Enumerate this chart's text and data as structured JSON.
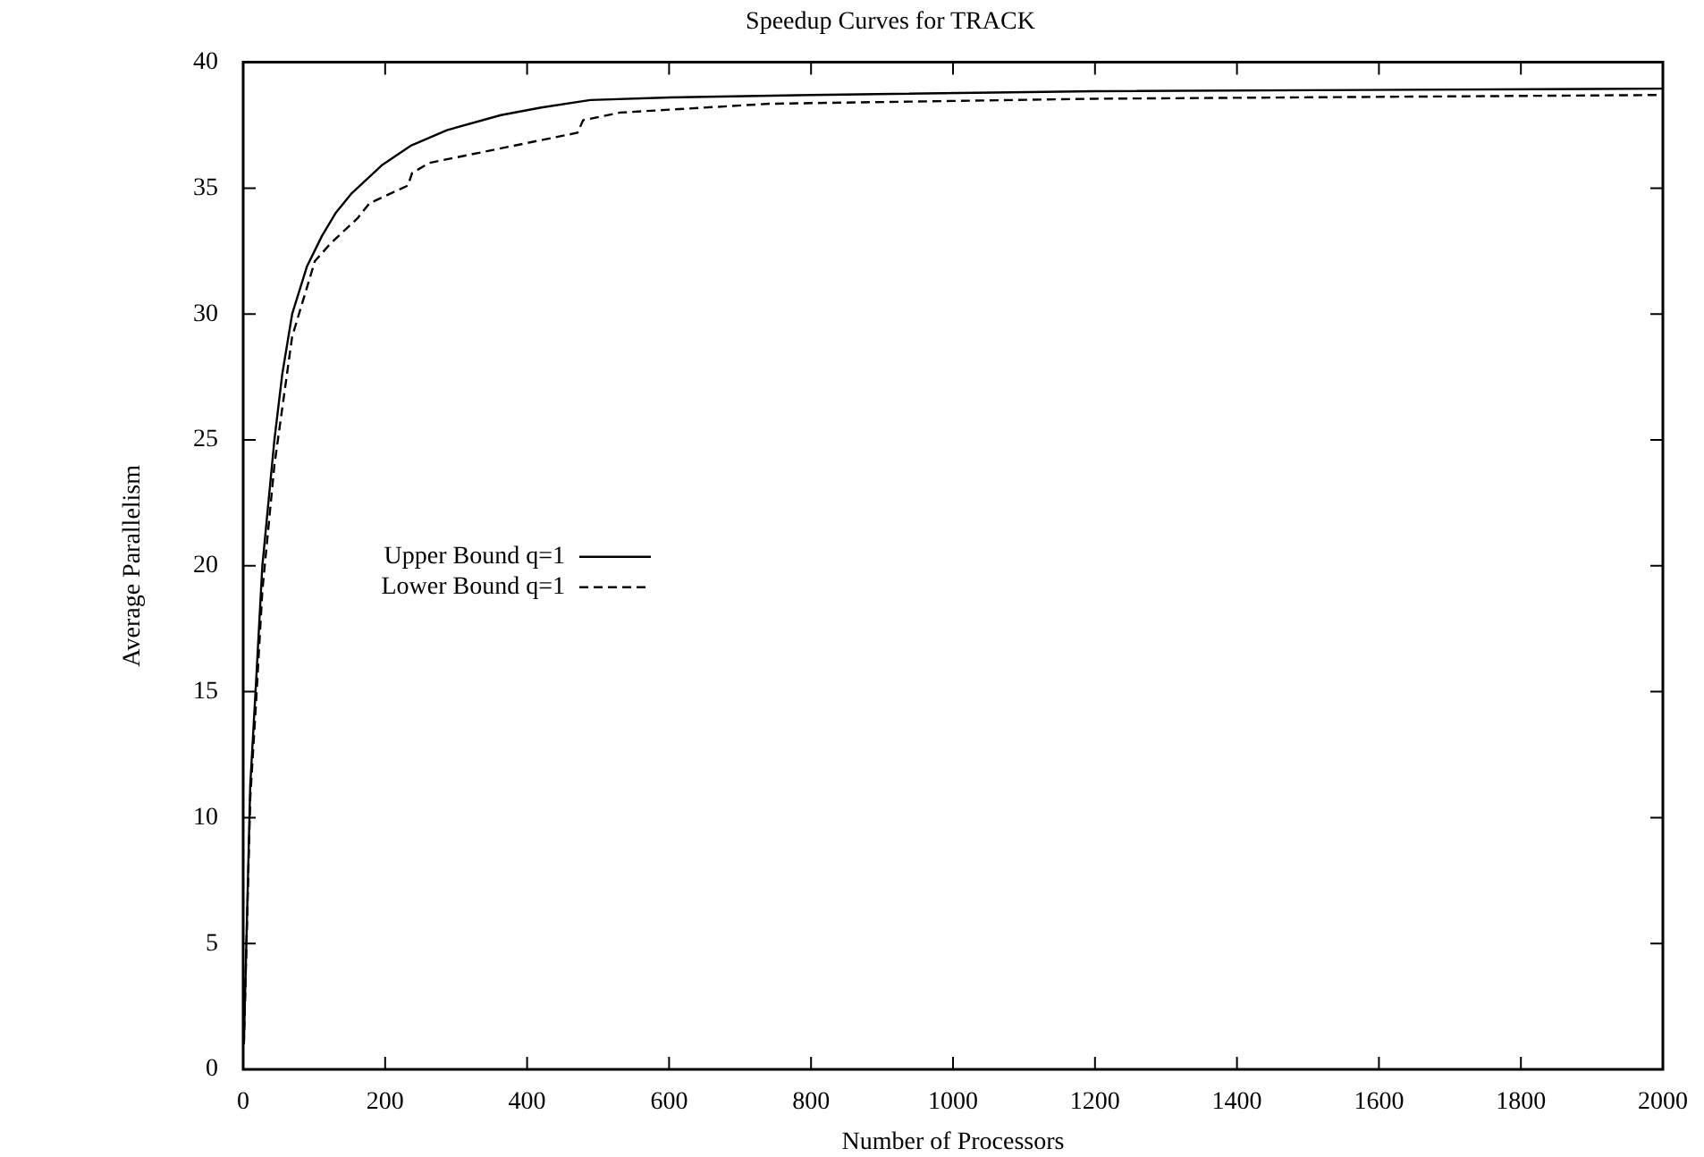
{
  "chart_data": {
    "type": "line",
    "title": "Speedup Curves for TRACK",
    "xlabel": "Number of Processors",
    "ylabel": "Average Parallelism",
    "xlim": [
      0,
      2000
    ],
    "xticks": [
      0,
      200,
      400,
      600,
      800,
      1000,
      1200,
      1400,
      1600,
      1800,
      2000
    ],
    "ylim": [
      0,
      40
    ],
    "yticks": [
      0,
      5,
      10,
      15,
      20,
      25,
      30,
      35,
      40
    ],
    "legend": "center left",
    "marker": "none",
    "series": [
      {
        "name": "Upper Bound q=1",
        "color": "#000000",
        "line_style": "solid",
        "x": [
          1,
          10,
          18,
          27,
          44,
          55,
          69,
          90,
          111,
          130,
          153,
          195,
          237,
          287,
          363,
          420,
          489,
          600,
          800,
          1200,
          2000
        ],
        "values": [
          1,
          11.3,
          15.3,
          20,
          25,
          27.6,
          30,
          31.9,
          33.1,
          34,
          34.8,
          35.9,
          36.7,
          37.3,
          37.9,
          38.2,
          38.5,
          38.6,
          38.7,
          38.85,
          38.95
        ]
      },
      {
        "name": "Lower Bound q=1",
        "color": "#000000",
        "line_style": "dashed",
        "x": [
          1,
          10,
          18,
          27,
          44,
          69,
          101,
          123,
          161,
          178,
          232,
          238,
          262,
          471,
          479,
          531,
          741,
          1200,
          2000
        ],
        "values": [
          1,
          10.8,
          14.5,
          19,
          24,
          29.1,
          32.1,
          32.8,
          33.8,
          34.4,
          35.1,
          35.6,
          36,
          37.2,
          37.7,
          38,
          38.35,
          38.55,
          38.7
        ]
      }
    ]
  }
}
